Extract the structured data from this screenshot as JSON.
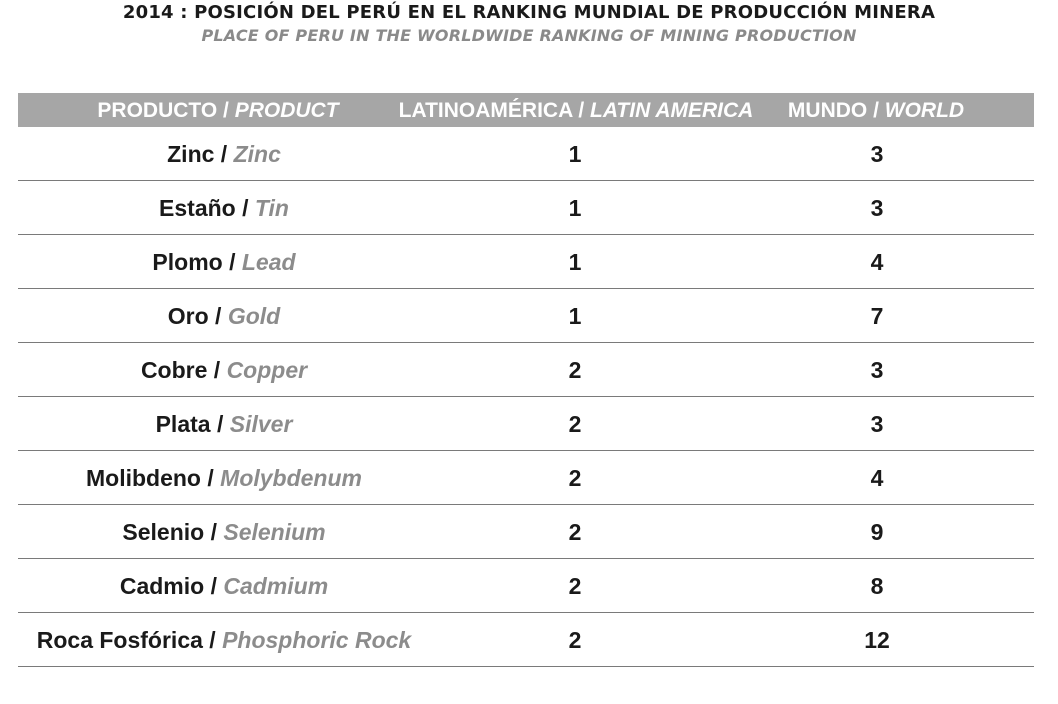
{
  "title": "2014 : POSICIÓN DEL PERÚ EN EL RANKING MUNDIAL DE PRODUCCIÓN MINERA",
  "subtitle": "PLACE OF PERU IN THE WORLDWIDE RANKING OF MINING PRODUCTION",
  "header": {
    "product_es": "PRODUCTO / ",
    "product_en": "PRODUCT",
    "latam_es": "LATINOAMÉRICA / ",
    "latam_en": "LATIN AMERICA",
    "world_es": "MUNDO / ",
    "world_en": "WORLD"
  },
  "chart_data": {
    "type": "table",
    "title": "2014 : POSICIÓN DEL PERÚ EN EL RANKING MUNDIAL DE PRODUCCIÓN MINERA",
    "subtitle": "PLACE OF PERU IN THE WORLDWIDE RANKING OF MINING PRODUCTION",
    "columns": [
      "PRODUCTO / PRODUCT",
      "LATINOAMÉRICA / LATIN AMERICA",
      "MUNDO / WORLD"
    ],
    "rows": [
      {
        "es": "Zinc / ",
        "en": "Zinc",
        "latam": "1",
        "world": "3"
      },
      {
        "es": "Estaño / ",
        "en": "Tin",
        "latam": "1",
        "world": "3"
      },
      {
        "es": "Plomo / ",
        "en": "Lead",
        "latam": "1",
        "world": "4"
      },
      {
        "es": "Oro / ",
        "en": "Gold",
        "latam": "1",
        "world": "7"
      },
      {
        "es": "Cobre / ",
        "en": "Copper",
        "latam": "2",
        "world": "3"
      },
      {
        "es": "Plata / ",
        "en": "Silver",
        "latam": "2",
        "world": "3"
      },
      {
        "es": "Molibdeno / ",
        "en": "Molybdenum",
        "latam": "2",
        "world": "4"
      },
      {
        "es": "Selenio / ",
        "en": "Selenium",
        "latam": "2",
        "world": "9"
      },
      {
        "es": "Cadmio / ",
        "en": "Cadmium",
        "latam": "2",
        "world": "8"
      },
      {
        "es": "Roca Fosfórica / ",
        "en": "Phosphoric Rock",
        "latam": "2",
        "world": "12"
      }
    ]
  }
}
